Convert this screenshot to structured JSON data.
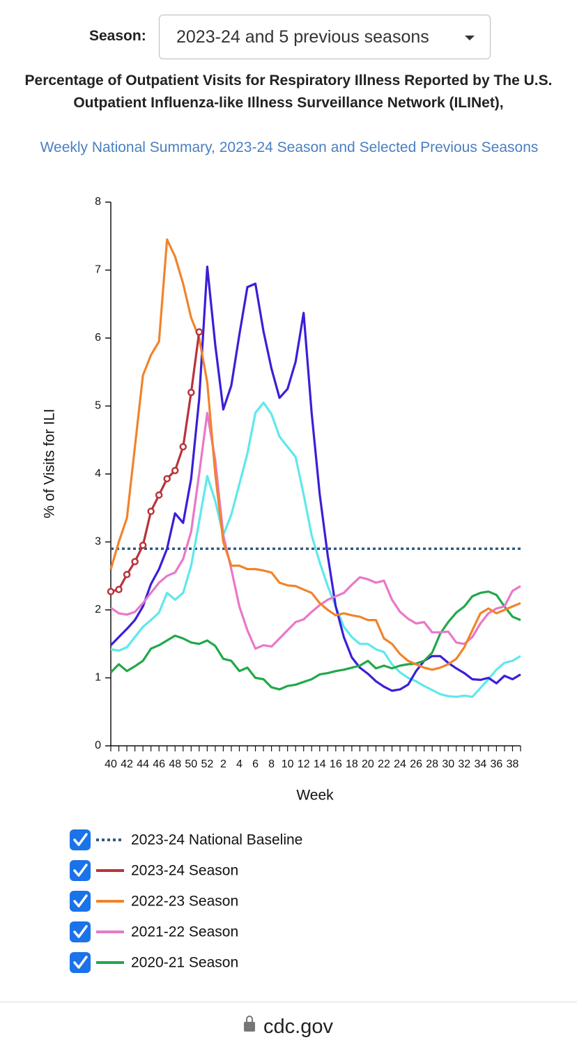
{
  "season_selector": {
    "label": "Season:",
    "selected": "2023-24 and 5 previous seasons"
  },
  "chart_data": {
    "type": "line",
    "title": "Percentage of Outpatient Visits for Respiratory Illness Reported by The U.S. Outpatient Influenza-like Illness Surveillance Network (ILINet),",
    "subtitle": "Weekly National Summary, 2023-24 Season and Selected Previous Seasons",
    "xlabel": "Week",
    "ylabel": "% of Visits for ILI",
    "categories": [
      40,
      null,
      42,
      null,
      44,
      null,
      46,
      null,
      48,
      null,
      50,
      null,
      52,
      null,
      2,
      null,
      4,
      null,
      6,
      null,
      8,
      null,
      10,
      null,
      12,
      null,
      14,
      null,
      16,
      null,
      18,
      null,
      20,
      null,
      22,
      null,
      24,
      null,
      26,
      null,
      28,
      null,
      30,
      null,
      32,
      null,
      34,
      null,
      36,
      null,
      38,
      null
    ],
    "ylim": [
      0,
      8
    ],
    "yticks": [
      0,
      1,
      2,
      3,
      4,
      5,
      6,
      7,
      8
    ],
    "baseline": {
      "name": "2023-24 National Baseline",
      "value": 2.9,
      "color": "#2e5b80"
    },
    "series": [
      {
        "color": "#5ee8ec",
        "values": [
          1.42,
          1.4,
          1.45,
          1.6,
          1.75,
          1.85,
          1.96,
          2.25,
          2.15,
          2.25,
          2.65,
          3.3,
          3.97,
          3.6,
          3.1,
          3.4,
          3.85,
          4.3,
          4.9,
          5.05,
          4.88,
          4.55,
          4.4,
          4.25,
          3.7,
          3.1,
          2.7,
          2.35,
          2.05,
          1.75,
          1.6,
          1.5,
          1.5,
          1.42,
          1.38,
          1.2,
          1.08,
          1.0,
          0.95,
          0.88,
          0.82,
          0.76,
          0.73,
          0.72,
          0.74,
          0.72,
          0.85,
          0.98,
          1.12,
          1.22,
          1.25,
          1.32
        ]
      },
      {
        "color": "#3a1fd8",
        "values": [
          1.48,
          1.6,
          1.72,
          1.85,
          2.05,
          2.38,
          2.6,
          2.9,
          3.42,
          3.28,
          3.93,
          5.1,
          7.05,
          5.9,
          4.95,
          5.3,
          6.05,
          6.75,
          6.8,
          6.1,
          5.55,
          5.12,
          5.25,
          5.65,
          6.37,
          4.9,
          3.7,
          2.8,
          2.05,
          1.6,
          1.3,
          1.15,
          1.06,
          0.95,
          0.87,
          0.81,
          0.83,
          0.9,
          1.1,
          1.25,
          1.32,
          1.32,
          1.22,
          1.14,
          1.07,
          0.98,
          0.97,
          1.0,
          0.92,
          1.03,
          0.98,
          1.05
        ]
      },
      {
        "name": "2020-21 Season",
        "color": "#22a84a",
        "values": [
          1.08,
          1.2,
          1.1,
          1.17,
          1.25,
          1.43,
          1.48,
          1.55,
          1.62,
          1.58,
          1.52,
          1.5,
          1.55,
          1.47,
          1.28,
          1.25,
          1.1,
          1.15,
          1.0,
          0.98,
          0.86,
          0.83,
          0.88,
          0.9,
          0.94,
          0.98,
          1.05,
          1.07,
          1.1,
          1.12,
          1.15,
          1.18,
          1.25,
          1.14,
          1.18,
          1.14,
          1.18,
          1.2,
          1.21,
          1.25,
          1.37,
          1.65,
          1.82,
          1.96,
          2.05,
          2.2,
          2.25,
          2.27,
          2.22,
          2.05,
          1.9,
          1.85
        ]
      },
      {
        "name": "2021-22 Season",
        "color": "#e878c8",
        "values": [
          2.03,
          1.95,
          1.93,
          1.97,
          2.1,
          2.25,
          2.4,
          2.5,
          2.55,
          2.75,
          3.15,
          4.0,
          4.9,
          4.2,
          3.1,
          2.6,
          2.05,
          1.7,
          1.43,
          1.48,
          1.46,
          1.58,
          1.7,
          1.82,
          1.86,
          1.97,
          2.07,
          2.15,
          2.2,
          2.25,
          2.37,
          2.48,
          2.45,
          2.4,
          2.43,
          2.15,
          1.97,
          1.87,
          1.8,
          1.82,
          1.67,
          1.67,
          1.68,
          1.52,
          1.5,
          1.6,
          1.8,
          1.95,
          2.02,
          2.05,
          2.28,
          2.35
        ]
      },
      {
        "name": "2022-23 Season",
        "color": "#f0842c",
        "values": [
          2.6,
          3.0,
          3.35,
          4.4,
          5.45,
          5.75,
          5.95,
          7.45,
          7.2,
          6.8,
          6.3,
          6.0,
          5.35,
          4.0,
          3.0,
          2.65,
          2.65,
          2.6,
          2.6,
          2.58,
          2.55,
          2.4,
          2.36,
          2.35,
          2.3,
          2.25,
          2.1,
          2.0,
          1.92,
          1.95,
          1.92,
          1.9,
          1.85,
          1.85,
          1.58,
          1.5,
          1.35,
          1.25,
          1.2,
          1.15,
          1.12,
          1.15,
          1.2,
          1.28,
          1.45,
          1.7,
          1.95,
          2.02,
          1.95,
          2.0,
          2.05,
          2.1
        ]
      },
      {
        "name": "2023-24 Season",
        "color": "#b8333a",
        "markers": true,
        "values": [
          2.27,
          2.3,
          2.52,
          2.71,
          2.95,
          3.45,
          3.69,
          3.93,
          4.05,
          4.4,
          5.2,
          6.09,
          null,
          null,
          null,
          null,
          null,
          null,
          null,
          null,
          null,
          null,
          null,
          null,
          null,
          null,
          null,
          null,
          null,
          null,
          null,
          null,
          null,
          null,
          null,
          null,
          null,
          null,
          null,
          null,
          null,
          null,
          null,
          null,
          null,
          null,
          null,
          null,
          null,
          null,
          null,
          null
        ]
      }
    ],
    "legend_order": [
      5,
      4,
      3,
      2
    ]
  },
  "footer": {
    "domain": "cdc.gov"
  }
}
